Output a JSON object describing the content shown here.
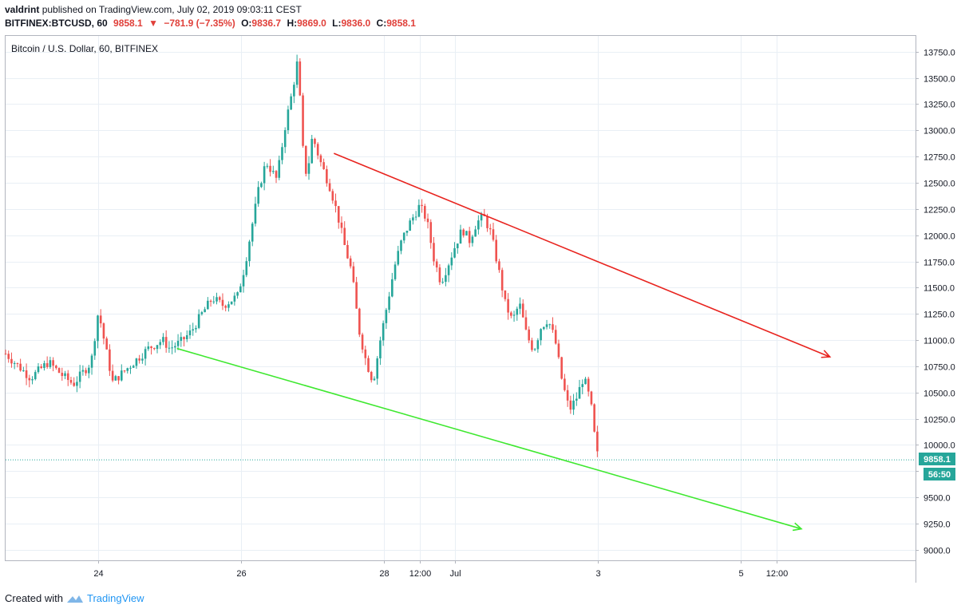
{
  "header": {
    "author": "valdrint",
    "published": "published on TradingView.com, July 02, 2019 09:03:11 CEST",
    "symbol_line": {
      "symbol": "BITFINEX:BTCUSD, 60",
      "last": "9858.1",
      "change": "−781.9 (−7.35%)",
      "o_label": "O:",
      "o": "9836.7",
      "h_label": "H:",
      "h": "9869.0",
      "l_label": "L:",
      "l": "9836.0",
      "c_label": "C:",
      "c": "9858.1"
    }
  },
  "footer": {
    "created_with": "Created with",
    "brand": "TradingView"
  },
  "chart_data": {
    "type": "candlestick",
    "title": "Bitcoin / U.S. Dollar, 60, BITFINEX",
    "ylim": [
      8900,
      13900
    ],
    "y_ticks": [
      9000,
      9250,
      9500,
      9750,
      10000,
      10250,
      10500,
      10750,
      11000,
      11250,
      11500,
      11750,
      12000,
      12250,
      12500,
      12750,
      13000,
      13250,
      13500,
      13750
    ],
    "x_ticks": [
      {
        "label": "24",
        "day": 24
      },
      {
        "label": "26",
        "day": 26
      },
      {
        "label": "28",
        "day": 28
      },
      {
        "label": "12:00",
        "day": 28.5
      },
      {
        "label": "Jul",
        "day": 29
      },
      {
        "label": "3",
        "day": 31
      },
      {
        "label": "5",
        "day": 33
      },
      {
        "label": "12:00",
        "day": 33.5
      }
    ],
    "x_domain_days": [
      22.7,
      35.45
    ],
    "price_label": "9858.1",
    "countdown_label": "56:50",
    "last_price": 9858.1,
    "colors": {
      "up": "#26a69a",
      "down": "#ef5350",
      "resistance": "#e8241f",
      "support": "#3fe830",
      "grid": "#e9eff5",
      "last_line": "#26a69a"
    },
    "price_path": [
      [
        22.7,
        10870
      ],
      [
        23.05,
        10640
      ],
      [
        23.3,
        10790
      ],
      [
        23.5,
        10660
      ],
      [
        23.65,
        10580
      ],
      [
        23.9,
        10790
      ],
      [
        24.0,
        11280
      ],
      [
        24.1,
        10930
      ],
      [
        24.2,
        10600
      ],
      [
        24.45,
        10760
      ],
      [
        24.7,
        10920
      ],
      [
        24.9,
        11000
      ],
      [
        25.0,
        10920
      ],
      [
        25.15,
        10980
      ],
      [
        25.3,
        11080
      ],
      [
        25.45,
        11250
      ],
      [
        25.6,
        11400
      ],
      [
        25.75,
        11330
      ],
      [
        25.95,
        11420
      ],
      [
        26.05,
        11700
      ],
      [
        26.15,
        12080
      ],
      [
        26.25,
        12450
      ],
      [
        26.35,
        12700
      ],
      [
        26.5,
        12530
      ],
      [
        26.62,
        13050
      ],
      [
        26.72,
        13380
      ],
      [
        26.8,
        13700
      ],
      [
        26.85,
        12900
      ],
      [
        26.92,
        12550
      ],
      [
        27.0,
        12950
      ],
      [
        27.1,
        12720
      ],
      [
        27.25,
        12450
      ],
      [
        27.35,
        12200
      ],
      [
        27.45,
        11900
      ],
      [
        27.55,
        11650
      ],
      [
        27.65,
        11100
      ],
      [
        27.75,
        10800
      ],
      [
        27.85,
        10600
      ],
      [
        27.95,
        11000
      ],
      [
        28.05,
        11350
      ],
      [
        28.15,
        11700
      ],
      [
        28.25,
        11950
      ],
      [
        28.35,
        12100
      ],
      [
        28.5,
        12280
      ],
      [
        28.6,
        12150
      ],
      [
        28.7,
        11780
      ],
      [
        28.8,
        11550
      ],
      [
        28.9,
        11720
      ],
      [
        29.0,
        11900
      ],
      [
        29.1,
        12060
      ],
      [
        29.2,
        11950
      ],
      [
        29.3,
        12120
      ],
      [
        29.4,
        12180
      ],
      [
        29.5,
        12020
      ],
      [
        29.6,
        11700
      ],
      [
        29.7,
        11350
      ],
      [
        29.8,
        11180
      ],
      [
        29.9,
        11350
      ],
      [
        30.0,
        11050
      ],
      [
        30.1,
        10900
      ],
      [
        30.2,
        11120
      ],
      [
        30.3,
        11200
      ],
      [
        30.4,
        11000
      ],
      [
        30.5,
        10600
      ],
      [
        30.6,
        10330
      ],
      [
        30.7,
        10450
      ],
      [
        30.8,
        10650
      ],
      [
        30.9,
        10400
      ],
      [
        30.95,
        10100
      ],
      [
        31.0,
        9870
      ]
    ],
    "lines": [
      {
        "name": "resistance",
        "from": [
          27.3,
          12780
        ],
        "to": [
          34.25,
          10840
        ],
        "arrow": true
      },
      {
        "name": "support",
        "from": [
          25.1,
          10920
        ],
        "to": [
          33.85,
          9200
        ],
        "arrow": true
      }
    ]
  }
}
